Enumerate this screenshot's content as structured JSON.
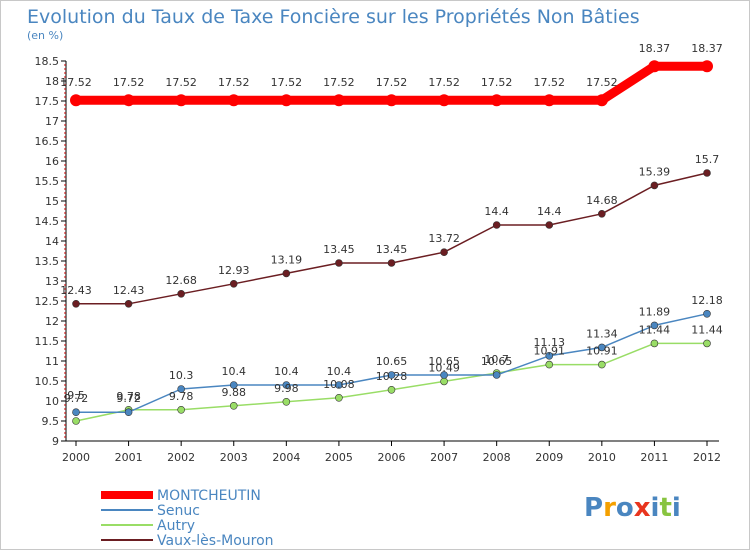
{
  "chart_data": {
    "type": "line",
    "title": "Evolution du Taux de Taxe Foncière sur les Propriétés Non Bâties",
    "ylabel": "(en %)",
    "xlabel": "",
    "categories": [
      "2000",
      "2001",
      "2002",
      "2003",
      "2004",
      "2005",
      "2006",
      "2007",
      "2008",
      "2009",
      "2010",
      "2011",
      "2012"
    ],
    "ylim": [
      9,
      18.5
    ],
    "yticks": [
      "9",
      "9.5",
      "10",
      "10.5",
      "11",
      "11.5",
      "12",
      "12.5",
      "13",
      "13.5",
      "14",
      "14.5",
      "15",
      "15.5",
      "16",
      "16.5",
      "17",
      "17.5",
      "18",
      "18.5"
    ],
    "grid": false,
    "legend_position": "bottom-left",
    "series": [
      {
        "name": "MONTCHEUTIN",
        "color": "#ff0000",
        "values": [
          17.52,
          17.52,
          17.52,
          17.52,
          17.52,
          17.52,
          17.52,
          17.52,
          17.52,
          17.52,
          17.52,
          18.37,
          18.37
        ],
        "labels": [
          "17.52",
          "17.52",
          "17.52",
          "17.52",
          "17.52",
          "17.52",
          "17.52",
          "17.52",
          "17.52",
          "17.52",
          "17.52",
          "18.37",
          "18.37"
        ]
      },
      {
        "name": "Senuc",
        "color": "#4a86c0",
        "values": [
          9.72,
          9.72,
          10.3,
          10.4,
          10.4,
          10.4,
          10.65,
          10.65,
          10.65,
          11.13,
          11.34,
          11.89,
          12.18
        ],
        "labels": [
          "9.72",
          "9.72",
          "10.3",
          "10.4",
          "10.4",
          "10.4",
          "10.65",
          "10.65",
          "10.65",
          "11.13",
          "11.34",
          "11.89",
          "12.18"
        ]
      },
      {
        "name": "Autry",
        "color": "#99dd66",
        "values": [
          9.5,
          9.78,
          9.78,
          9.88,
          9.98,
          10.08,
          10.28,
          10.49,
          10.7,
          10.91,
          10.91,
          11.44,
          11.44
        ],
        "labels": [
          "9.5",
          "9.78",
          "9.78",
          "9.88",
          "9.98",
          "10.08",
          "10.28",
          "10.49",
          "10.7",
          "10.91",
          "10.91",
          "11.44",
          "11.44"
        ]
      },
      {
        "name": "Vaux-lès-Mouron",
        "color": "#6b1e22",
        "values": [
          12.43,
          12.43,
          12.68,
          12.93,
          13.19,
          13.45,
          13.45,
          13.72,
          14.4,
          14.4,
          14.68,
          15.39,
          15.7
        ],
        "labels": [
          "12.43",
          "12.43",
          "12.68",
          "12.93",
          "13.19",
          "13.45",
          "13.45",
          "13.72",
          "14.4",
          "14.4",
          "14.68",
          "15.39",
          "15.7"
        ]
      }
    ]
  },
  "brand": {
    "text": "Proxiti",
    "colors": [
      "#4a86c0",
      "#f4a000",
      "#4a86c0",
      "#e8351e",
      "#4a86c0",
      "#88c440",
      "#4a86c0"
    ]
  }
}
